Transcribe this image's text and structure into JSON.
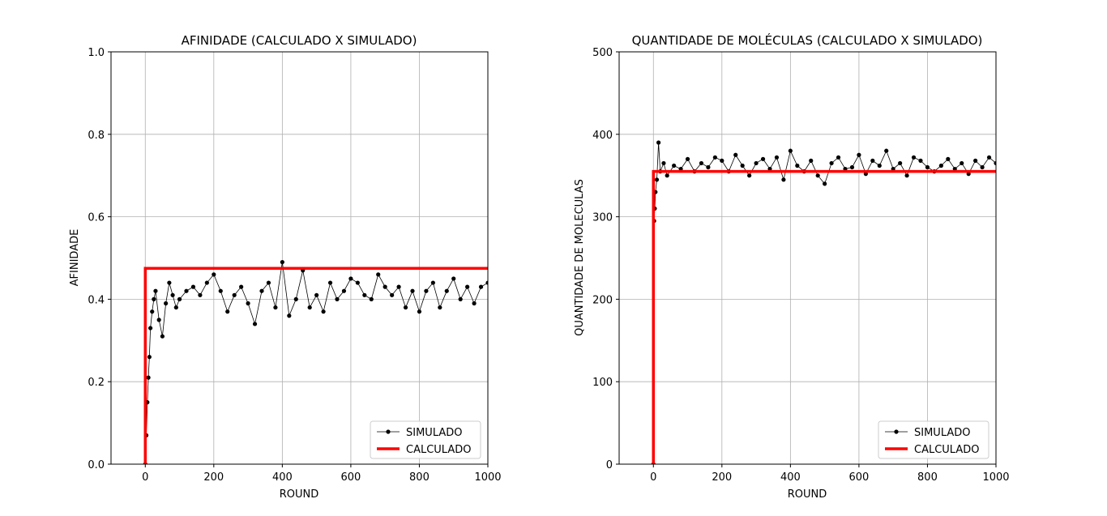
{
  "chart_data": [
    {
      "type": "line",
      "title": "AFINIDADE (CALCULADO X SIMULADO)",
      "xlabel": "ROUND",
      "ylabel": "AFINIDADE",
      "xlim": [
        -100,
        1000
      ],
      "ylim": [
        0,
        1
      ],
      "xticks": [
        0,
        200,
        400,
        600,
        800,
        1000
      ],
      "yticks": [
        0.0,
        0.2,
        0.4,
        0.6,
        0.8,
        1.0
      ],
      "xtick_labels": [
        "0",
        "200",
        "400",
        "600",
        "800",
        "1000"
      ],
      "ytick_labels": [
        "0.0",
        "0.2",
        "0.4",
        "0.6",
        "0.8",
        "1.0"
      ],
      "grid": true,
      "legend": "lower-right",
      "series": [
        {
          "name": "SIMULADO",
          "color": "#000000",
          "marker": "circle",
          "x": [
            0,
            3,
            6,
            9,
            12,
            15,
            20,
            25,
            30,
            40,
            50,
            60,
            70,
            80,
            90,
            100,
            120,
            140,
            160,
            180,
            200,
            220,
            240,
            260,
            280,
            300,
            320,
            340,
            360,
            380,
            400,
            420,
            440,
            460,
            480,
            500,
            520,
            540,
            560,
            580,
            600,
            620,
            640,
            660,
            680,
            700,
            720,
            740,
            760,
            780,
            800,
            820,
            840,
            860,
            880,
            900,
            920,
            940,
            960,
            980,
            1000
          ],
          "y": [
            0.0,
            0.07,
            0.15,
            0.21,
            0.26,
            0.33,
            0.37,
            0.4,
            0.42,
            0.35,
            0.31,
            0.39,
            0.44,
            0.41,
            0.38,
            0.4,
            0.42,
            0.43,
            0.41,
            0.44,
            0.46,
            0.42,
            0.37,
            0.41,
            0.43,
            0.39,
            0.34,
            0.42,
            0.44,
            0.38,
            0.49,
            0.36,
            0.4,
            0.47,
            0.38,
            0.41,
            0.37,
            0.44,
            0.4,
            0.42,
            0.45,
            0.44,
            0.41,
            0.4,
            0.46,
            0.43,
            0.41,
            0.43,
            0.38,
            0.42,
            0.37,
            0.42,
            0.44,
            0.38,
            0.42,
            0.45,
            0.4,
            0.43,
            0.39,
            0.43,
            0.44
          ]
        },
        {
          "name": "CALCULADO",
          "color": "#ff0000",
          "x": [
            0,
            0,
            1000
          ],
          "y": [
            0.0,
            0.475,
            0.475
          ]
        }
      ]
    },
    {
      "type": "line",
      "title": "QUANTIDADE DE MOLÉCULAS (CALCULADO X SIMULADO)",
      "xlabel": "ROUND",
      "ylabel": "QUANTIDADE DE MOLECULAS",
      "xlim": [
        -100,
        1000
      ],
      "ylim": [
        0,
        500
      ],
      "xticks": [
        0,
        200,
        400,
        600,
        800,
        1000
      ],
      "yticks": [
        0,
        100,
        200,
        300,
        400,
        500
      ],
      "xtick_labels": [
        "0",
        "200",
        "400",
        "600",
        "800",
        "1000"
      ],
      "ytick_labels": [
        "0",
        "100",
        "200",
        "300",
        "400",
        "500"
      ],
      "grid": true,
      "legend": "lower-right",
      "series": [
        {
          "name": "SIMULADO",
          "color": "#000000",
          "marker": "circle",
          "x": [
            0,
            2,
            4,
            6,
            10,
            15,
            20,
            30,
            40,
            60,
            80,
            100,
            120,
            140,
            160,
            180,
            200,
            220,
            240,
            260,
            280,
            300,
            320,
            340,
            360,
            380,
            400,
            420,
            440,
            460,
            480,
            500,
            520,
            540,
            560,
            580,
            600,
            620,
            640,
            660,
            680,
            700,
            720,
            740,
            760,
            780,
            800,
            820,
            840,
            860,
            880,
            900,
            920,
            940,
            960,
            980,
            1000
          ],
          "y": [
            0,
            295,
            310,
            330,
            345,
            390,
            355,
            365,
            350,
            362,
            358,
            370,
            355,
            365,
            360,
            372,
            368,
            355,
            375,
            362,
            350,
            365,
            370,
            358,
            372,
            345,
            380,
            362,
            355,
            368,
            350,
            340,
            365,
            372,
            358,
            360,
            375,
            352,
            368,
            362,
            380,
            358,
            365,
            350,
            372,
            368,
            360,
            355,
            362,
            370,
            358,
            365,
            352,
            368,
            360,
            372,
            365
          ]
        },
        {
          "name": "CALCULADO",
          "color": "#ff0000",
          "x": [
            0,
            0,
            1000
          ],
          "y": [
            0,
            355,
            355
          ]
        }
      ]
    }
  ]
}
